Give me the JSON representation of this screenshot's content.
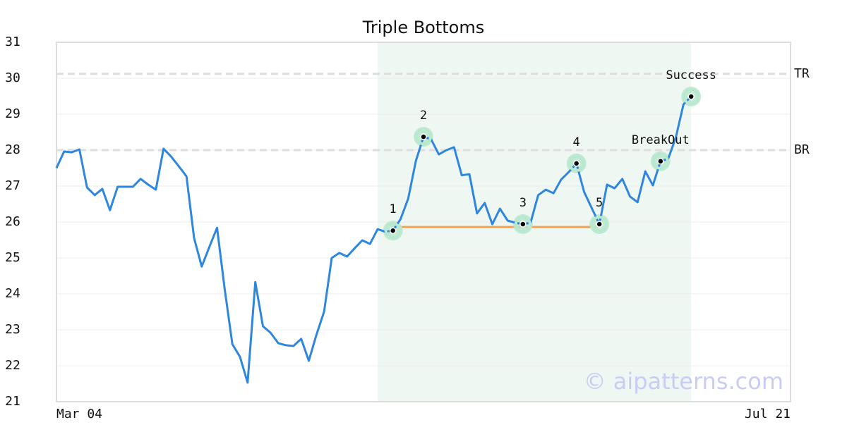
{
  "chart_data": {
    "type": "line",
    "title": "Triple Bottoms",
    "categories": [
      "Mar 04",
      null,
      null,
      null,
      null,
      null,
      null,
      null,
      null,
      null,
      null,
      null,
      null,
      null,
      null,
      null,
      null,
      null,
      null,
      null,
      null,
      null,
      null,
      null,
      null,
      null,
      null,
      null,
      null,
      null,
      null,
      null,
      null,
      null,
      null,
      null,
      null,
      null,
      null,
      null,
      null,
      null,
      null,
      null,
      null,
      null,
      null,
      null,
      null,
      null,
      null,
      null,
      null,
      null,
      null,
      null,
      null,
      null,
      null,
      null,
      null,
      null,
      null,
      null,
      null,
      null,
      null,
      null,
      null,
      null,
      null,
      null,
      null,
      null,
      null,
      null,
      null,
      null,
      null,
      null,
      null,
      null,
      null,
      null,
      null,
      null,
      null,
      null,
      null,
      null,
      null,
      null,
      null,
      null,
      null,
      null,
      "Jul 21"
    ],
    "values": [
      27.5,
      27.96,
      27.94,
      28.02,
      26.96,
      26.75,
      26.92,
      26.33,
      26.98,
      26.98,
      26.98,
      27.2,
      27.04,
      26.9,
      28.04,
      27.82,
      27.55,
      27.27,
      25.55,
      24.76,
      25.31,
      25.84,
      24.14,
      22.6,
      22.25,
      21.53,
      24.33,
      23.1,
      22.92,
      22.63,
      22.57,
      22.55,
      22.75,
      22.14,
      22.86,
      23.51,
      25.0,
      25.14,
      25.04,
      25.27,
      25.49,
      25.39,
      25.8,
      25.73,
      25.76,
      26.08,
      26.65,
      27.7,
      28.37,
      28.3,
      27.88,
      28.0,
      28.08,
      27.3,
      27.33,
      26.24,
      26.53,
      25.94,
      26.37,
      26.04,
      25.98,
      25.94,
      25.98,
      26.75,
      26.9,
      26.8,
      27.18,
      27.39,
      27.63,
      26.84,
      26.39,
      25.94,
      27.04,
      26.94,
      27.2,
      26.71,
      26.55,
      27.41,
      27.02,
      27.69,
      27.76,
      28.35,
      29.27,
      29.49,
      null,
      null,
      null,
      null,
      null,
      null,
      null,
      null,
      null,
      null,
      null,
      null,
      null
    ],
    "color": "#2f86de",
    "ylim": [
      21,
      31
    ],
    "yticks": [
      21,
      22,
      23,
      24,
      25,
      26,
      27,
      28,
      29,
      30,
      31
    ],
    "grid": true,
    "shaded": {
      "from": 42,
      "to": 83,
      "color": "#eef7f2"
    },
    "levels": [
      {
        "label": "TR",
        "value": 30.12
      },
      {
        "label": "BR",
        "value": 28
      }
    ],
    "support": {
      "value": 25.86,
      "from": 44,
      "to": 71,
      "color": "#f5a04a"
    },
    "markers": [
      {
        "label": "1",
        "index": 44
      },
      {
        "label": "2",
        "index": 48
      },
      {
        "label": "3",
        "index": 61
      },
      {
        "label": "4",
        "index": 68
      },
      {
        "label": "5",
        "index": 71
      },
      {
        "label": "BreakOut",
        "index": 79
      },
      {
        "label": "Success",
        "index": 83
      }
    ],
    "watermark": "© aipatterns.com"
  }
}
